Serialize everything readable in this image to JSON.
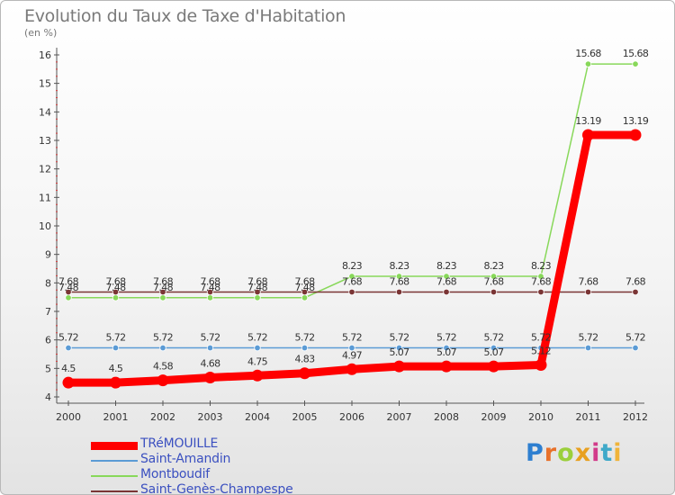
{
  "chart_data": {
    "type": "line",
    "title": "Evolution du Taux de Taxe d'Habitation",
    "unit_label": "(en %)",
    "x": [
      "2000",
      "2001",
      "2002",
      "2003",
      "2004",
      "2005",
      "2006",
      "2007",
      "2008",
      "2009",
      "2010",
      "2011",
      "2012"
    ],
    "ylim": [
      4,
      16
    ],
    "yticks": [
      "4",
      "5",
      "6",
      "7",
      "8",
      "9",
      "10",
      "11",
      "12",
      "13",
      "14",
      "15",
      "16"
    ],
    "grid": false,
    "legend_position": "bottom-left",
    "series": [
      {
        "name": "TRéMOUILLE",
        "color": "#ff0000",
        "style": "thick",
        "values": [
          4.5,
          4.5,
          4.58,
          4.68,
          4.75,
          4.83,
          4.97,
          5.07,
          5.07,
          5.07,
          5.12,
          13.19,
          13.19
        ],
        "labels": [
          "4.5",
          "4.5",
          "4.58",
          "4.68",
          "4.75",
          "4.83",
          "4.97",
          "5.07",
          "5.07",
          "5.07",
          "5.12",
          "13.19",
          "13.19"
        ]
      },
      {
        "name": "Saint-Amandin",
        "color": "#5b9bd5",
        "style": "thin",
        "values": [
          5.72,
          5.72,
          5.72,
          5.72,
          5.72,
          5.72,
          5.72,
          5.72,
          5.72,
          5.72,
          5.72,
          5.72,
          5.72
        ],
        "labels": [
          "5.72",
          "5.72",
          "5.72",
          "5.72",
          "5.72",
          "5.72",
          "5.72",
          "5.72",
          "5.72",
          "5.72",
          "5.72",
          "5.72",
          "5.72"
        ]
      },
      {
        "name": "Montboudif",
        "color": "#88d85a",
        "style": "thin",
        "values": [
          7.48,
          7.48,
          7.48,
          7.48,
          7.48,
          7.48,
          8.23,
          8.23,
          8.23,
          8.23,
          8.23,
          15.68,
          15.68
        ],
        "labels": [
          "7.48",
          "7.48",
          "7.48",
          "7.48",
          "7.48",
          "7.48",
          "8.23",
          "8.23",
          "8.23",
          "8.23",
          "8.23",
          "15.68",
          "15.68"
        ]
      },
      {
        "name": "Saint-Genès-Champespe",
        "color": "#7a3535",
        "style": "thin",
        "values": [
          7.68,
          7.68,
          7.68,
          7.68,
          7.68,
          7.68,
          7.68,
          7.68,
          7.68,
          7.68,
          7.68,
          7.68,
          7.68
        ],
        "labels": [
          "7.68",
          "7.68",
          "7.68",
          "7.68",
          "7.68",
          "7.68",
          "7.68",
          "7.68",
          "7.68",
          "7.68",
          "7.68",
          "7.68",
          "7.68"
        ]
      }
    ]
  },
  "brand": {
    "letters": [
      "P",
      "r",
      "o",
      "x",
      "i",
      "t",
      "i"
    ],
    "colors": [
      "#2e7fd0",
      "#e8712a",
      "#9bcf3c",
      "#e8a020",
      "#d23b8a",
      "#3fa9c9",
      "#f0b43a"
    ]
  }
}
